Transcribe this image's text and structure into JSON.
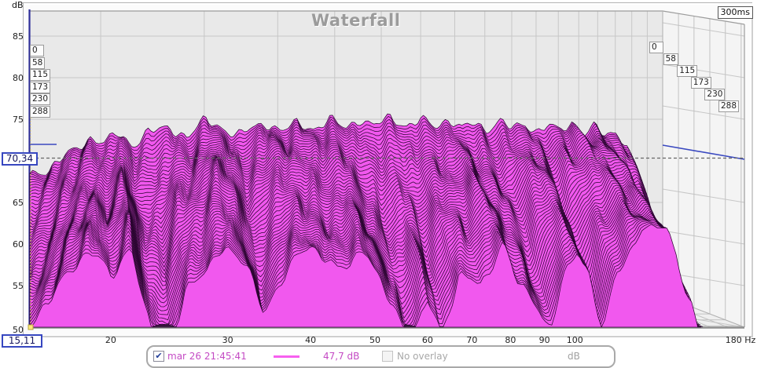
{
  "window": {
    "title": "Waterfall",
    "time_window_label": "300ms",
    "y_axis_unit_label": "dB"
  },
  "cursor": {
    "level_db_label": "70,34",
    "frequency_hz_label": "15,11"
  },
  "y_axis": {
    "unit": "dB",
    "ticks": [
      {
        "value": 85,
        "label": "85"
      },
      {
        "value": 80,
        "label": "80"
      },
      {
        "value": 75,
        "label": "75"
      },
      {
        "value": 65,
        "label": "65"
      },
      {
        "value": 60,
        "label": "60"
      },
      {
        "value": 55,
        "label": "55"
      },
      {
        "value": 50,
        "label": "50"
      }
    ]
  },
  "x_axis": {
    "unit": "Hz",
    "ticks": [
      {
        "value": 20,
        "label": "20"
      },
      {
        "value": 30,
        "label": "30"
      },
      {
        "value": 40,
        "label": "40"
      },
      {
        "value": 50,
        "label": "50"
      },
      {
        "value": 60,
        "label": "60"
      },
      {
        "value": 70,
        "label": "70"
      },
      {
        "value": 80,
        "label": "80"
      },
      {
        "value": 90,
        "label": "90"
      },
      {
        "value": 100,
        "label": "100"
      },
      {
        "value": 180,
        "label": "180 Hz"
      }
    ]
  },
  "time_slice_labels": [
    "0",
    "58",
    "115",
    "173",
    "230",
    "288"
  ],
  "legend": {
    "measurement": {
      "checked": true,
      "label": "mar 26 21:45:41",
      "level_label": "47,7 dB",
      "color": "#c44ac4",
      "line_color": "#f760ef"
    },
    "overlay": {
      "checked": false,
      "label": "No overlay"
    },
    "unit_label": "dB"
  },
  "chart_data": {
    "type": "area",
    "subtype": "waterfall-3d-spectral-decay",
    "title": "Waterfall",
    "xlabel": "Hz",
    "ylabel": "dB",
    "x_scale": "log",
    "xlim": [
      15.11,
      180
    ],
    "ylim": [
      50,
      88
    ],
    "time_window_ms": 300,
    "time_slice_gridlines_ms": [
      0,
      58,
      115,
      173,
      230,
      288
    ],
    "num_slices": 56,
    "cursor": {
      "frequency_hz": 15.11,
      "level_db": 70.34
    },
    "legend_measurement": "mar 26 21:45:41",
    "legend_level_db": 47.7,
    "series": {
      "initial_spectrum_db": [
        [
          15.11,
          66
        ],
        [
          16.2,
          66.5
        ],
        [
          17.2,
          68.2
        ],
        [
          18.2,
          69.2
        ],
        [
          19.2,
          70.6
        ],
        [
          20.2,
          70.0
        ],
        [
          21.3,
          71.2
        ],
        [
          22.6,
          69.6
        ],
        [
          24,
          71.6
        ],
        [
          26,
          72.2
        ],
        [
          28,
          71.2
        ],
        [
          30,
          73.6
        ],
        [
          32,
          72.6
        ],
        [
          34,
          71.6
        ],
        [
          36,
          72.6
        ],
        [
          38,
          73.2
        ],
        [
          40.5,
          72.1
        ],
        [
          43,
          73.1
        ],
        [
          46,
          72.1
        ],
        [
          49,
          73.3
        ],
        [
          52,
          72.1
        ],
        [
          55,
          73.1
        ],
        [
          58,
          72.2
        ],
        [
          62,
          73.4
        ],
        [
          66,
          72.1
        ],
        [
          70,
          73.1
        ],
        [
          74,
          72.3
        ],
        [
          78,
          73.3
        ],
        [
          82,
          72.2
        ],
        [
          86,
          73.1
        ],
        [
          90,
          72.1
        ],
        [
          95,
          73.5
        ],
        [
          100,
          72.5
        ],
        [
          105,
          73.1
        ],
        [
          110,
          72.1
        ],
        [
          115,
          73.1
        ],
        [
          120,
          72.1
        ],
        [
          126,
          73.1
        ],
        [
          132,
          71.6
        ],
        [
          138,
          72.6
        ],
        [
          144,
          71.1
        ],
        [
          150,
          71.6
        ],
        [
          156,
          70.1
        ],
        [
          162,
          66.1
        ],
        [
          168,
          60.1
        ],
        [
          174,
          54.1
        ],
        [
          180,
          50
        ]
      ],
      "decay_db_over_window": [
        [
          15.11,
          16
        ],
        [
          17,
          12
        ],
        [
          18.5,
          10.5
        ],
        [
          20,
          14
        ],
        [
          21.5,
          11
        ],
        [
          23,
          20
        ],
        [
          24.5,
          24
        ],
        [
          26,
          17
        ],
        [
          29,
          13
        ],
        [
          32,
          15
        ],
        [
          34,
          20
        ],
        [
          37,
          16
        ],
        [
          40,
          13
        ],
        [
          44,
          16
        ],
        [
          48,
          14
        ],
        [
          52,
          18
        ],
        [
          56,
          25
        ],
        [
          60,
          19
        ],
        [
          63,
          24
        ],
        [
          67,
          16
        ],
        [
          72,
          17
        ],
        [
          78,
          13
        ],
        [
          83,
          17
        ],
        [
          88,
          20
        ],
        [
          92,
          23
        ],
        [
          97,
          16
        ],
        [
          101,
          13
        ],
        [
          106,
          18
        ],
        [
          110,
          23
        ],
        [
          116,
          16
        ],
        [
          122,
          13
        ],
        [
          128,
          11
        ],
        [
          135,
          10
        ],
        [
          142,
          13
        ],
        [
          148,
          18
        ],
        [
          155,
          23
        ],
        [
          163,
          25
        ],
        [
          172,
          27
        ],
        [
          180,
          28
        ]
      ]
    },
    "style": {
      "fill_color": "#f158ee",
      "contour_color": "#2a0530",
      "back_wall_color": "#e9e9e9",
      "side_wall_color": "#f4f4f4",
      "floor_color": "#efefef",
      "grid_color": "#c7c7c7",
      "frame_color": "#9c9c9c",
      "axis_blue": "#2d2d99",
      "marker_blue": "#3a49c0",
      "cursor_line_color": "#666666",
      "cursor_yellow": "#f0df7a"
    }
  }
}
